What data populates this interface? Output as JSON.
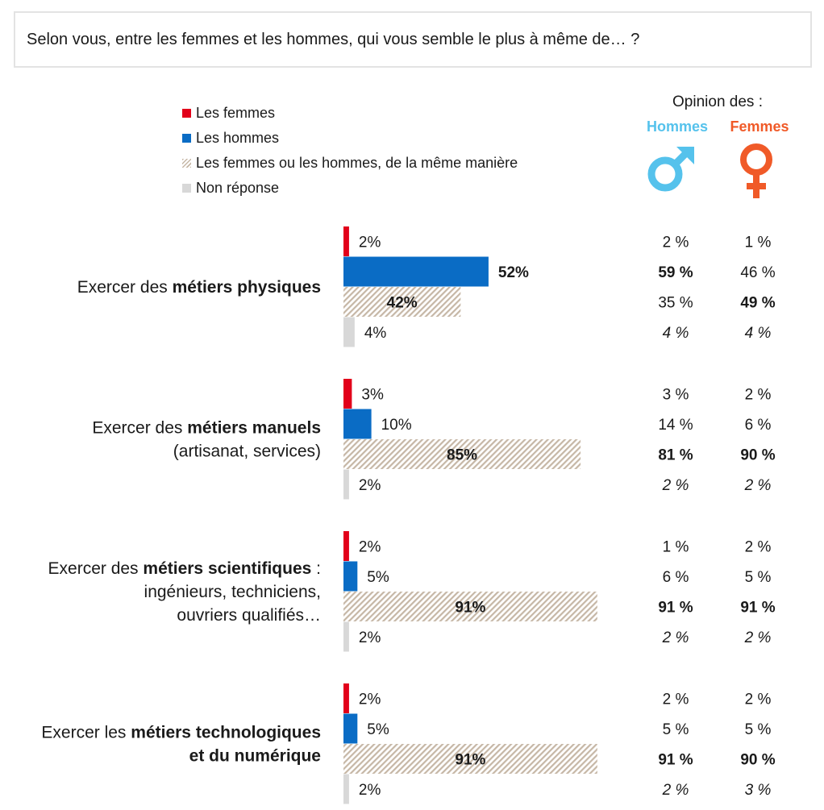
{
  "question": "Selon vous, entre les femmes et les hommes, qui vous semble le plus à même de… ?",
  "legend": [
    {
      "label": "Les femmes",
      "swatch": "red"
    },
    {
      "label": "Les hommes",
      "swatch": "blue"
    },
    {
      "label": "Les femmes ou les hommes, de la même manière",
      "swatch": "hatch"
    },
    {
      "label": "Non réponse",
      "swatch": "grey"
    }
  ],
  "opinion": {
    "title": "Opinion des :",
    "hommes": "Hommes",
    "femmes": "Femmes"
  },
  "colors": {
    "femmes": "#e2001a",
    "hommes": "#0a6cc5",
    "same": "#c6b7a6",
    "nr": "#d8d8d8",
    "hommes_head": "#55c2ec",
    "femmes_head": "#f05a28"
  },
  "chart_data": {
    "type": "bar",
    "orientation": "horizontal",
    "series_names": [
      "Les femmes",
      "Les hommes",
      "Les femmes ou les hommes, de la même manière",
      "Non réponse"
    ],
    "groups": [
      {
        "label_lines": [
          [
            {
              "t": "Exercer des ",
              "b": false
            },
            {
              "t": "métiers physiques",
              "b": true
            }
          ]
        ],
        "values": [
          2,
          52,
          42,
          4
        ],
        "value_labels": [
          "2%",
          "52%",
          "42%",
          "4%"
        ],
        "bold": [
          false,
          true,
          true,
          false
        ],
        "hommes": [
          "2 %",
          "59 %",
          "35 %",
          "4 %"
        ],
        "femmes": [
          "1 %",
          "46 %",
          "49 %",
          "4 %"
        ],
        "hommes_bold": [
          false,
          true,
          false,
          false
        ],
        "femmes_bold": [
          false,
          false,
          true,
          false
        ]
      },
      {
        "label_lines": [
          [
            {
              "t": "Exercer des ",
              "b": false
            },
            {
              "t": "métiers manuels",
              "b": true
            }
          ],
          [
            {
              "t": "(artisanat, services)",
              "b": false
            }
          ]
        ],
        "values": [
          3,
          10,
          85,
          2
        ],
        "value_labels": [
          "3%",
          "10%",
          "85%",
          "2%"
        ],
        "bold": [
          false,
          false,
          true,
          false
        ],
        "hommes": [
          "3 %",
          "14 %",
          "81 %",
          "2 %"
        ],
        "femmes": [
          "2 %",
          "6 %",
          "90 %",
          "2 %"
        ],
        "hommes_bold": [
          false,
          false,
          true,
          false
        ],
        "femmes_bold": [
          false,
          false,
          true,
          false
        ]
      },
      {
        "label_lines": [
          [
            {
              "t": "Exercer des ",
              "b": false
            },
            {
              "t": "métiers scientifiques",
              "b": true
            },
            {
              "t": " :",
              "b": false
            }
          ],
          [
            {
              "t": "ingénieurs, techniciens,",
              "b": false
            }
          ],
          [
            {
              "t": "ouvriers qualifiés…",
              "b": false
            }
          ]
        ],
        "values": [
          2,
          5,
          91,
          2
        ],
        "value_labels": [
          "2%",
          "5%",
          "91%",
          "2%"
        ],
        "bold": [
          false,
          false,
          true,
          false
        ],
        "hommes": [
          "1 %",
          "6 %",
          "91 %",
          "2 %"
        ],
        "femmes": [
          "2 %",
          "5 %",
          "91 %",
          "2 %"
        ],
        "hommes_bold": [
          false,
          false,
          true,
          false
        ],
        "femmes_bold": [
          false,
          false,
          true,
          false
        ]
      },
      {
        "label_lines": [
          [
            {
              "t": "Exercer les ",
              "b": false
            },
            {
              "t": "métiers technologiques",
              "b": true
            }
          ],
          [
            {
              "t": "et du numérique",
              "b": true
            }
          ]
        ],
        "values": [
          2,
          5,
          91,
          2
        ],
        "value_labels": [
          "2%",
          "5%",
          "91%",
          "2%"
        ],
        "bold": [
          false,
          false,
          true,
          false
        ],
        "hommes": [
          "2 %",
          "5 %",
          "91 %",
          "2 %"
        ],
        "femmes": [
          "2 %",
          "5 %",
          "90 %",
          "3 %"
        ],
        "hommes_bold": [
          false,
          false,
          true,
          false
        ],
        "femmes_bold": [
          false,
          false,
          true,
          false
        ]
      }
    ]
  }
}
